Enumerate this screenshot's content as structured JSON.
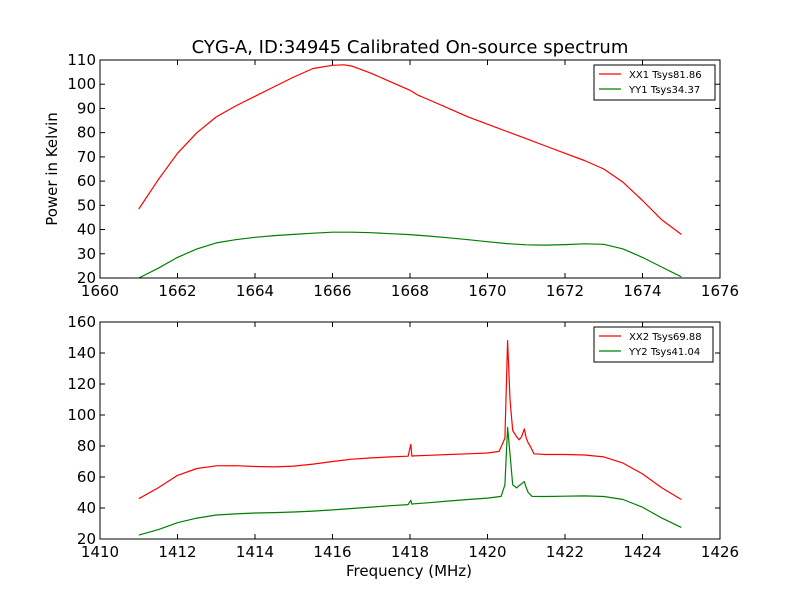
{
  "figure": {
    "title": "CYG-A, ID:34945 Calibrated On-source spectrum",
    "ylabel": "Power in Kelvin",
    "xlabel": "Frequency (MHz)"
  },
  "chart_data": [
    {
      "type": "line",
      "xlim": [
        1660,
        1676
      ],
      "ylim": [
        20,
        110
      ],
      "xticks": [
        "1660",
        "1662",
        "1664",
        "1666",
        "1668",
        "1670",
        "1672",
        "1674",
        "1676"
      ],
      "yticks": [
        "20",
        "30",
        "40",
        "50",
        "60",
        "70",
        "80",
        "90",
        "100",
        "110"
      ],
      "legend_position": "top-right",
      "series": [
        {
          "name": "XX1 Tsys81.86",
          "color": "#ff0000",
          "x": [
            1661.0,
            1661.5,
            1662.0,
            1662.5,
            1663.0,
            1663.5,
            1664.0,
            1664.5,
            1665.0,
            1665.5,
            1666.0,
            1666.3,
            1666.5,
            1667.0,
            1667.5,
            1668.0,
            1668.2,
            1668.5,
            1669.0,
            1669.5,
            1670.0,
            1670.5,
            1671.0,
            1671.5,
            1672.0,
            1672.5,
            1673.0,
            1673.5,
            1674.0,
            1674.5,
            1675.0
          ],
          "y": [
            48.5,
            60.5,
            71.5,
            80.0,
            86.5,
            91.0,
            95.0,
            99.0,
            103.0,
            106.5,
            107.8,
            108.0,
            107.5,
            104.5,
            101.0,
            97.5,
            95.5,
            93.5,
            90.0,
            86.5,
            83.5,
            80.5,
            77.5,
            74.5,
            71.5,
            68.5,
            65.0,
            59.5,
            52.0,
            44.0,
            38.0
          ]
        },
        {
          "name": "YY1 Tsys34.37",
          "color": "#008000",
          "x": [
            1661.0,
            1661.5,
            1662.0,
            1662.5,
            1663.0,
            1663.5,
            1664.0,
            1664.5,
            1665.0,
            1665.5,
            1666.0,
            1666.5,
            1667.0,
            1667.5,
            1668.0,
            1668.5,
            1669.0,
            1669.5,
            1670.0,
            1670.5,
            1671.0,
            1671.5,
            1672.0,
            1672.5,
            1673.0,
            1673.5,
            1674.0,
            1674.5,
            1675.0
          ],
          "y": [
            20.0,
            24.0,
            28.5,
            32.0,
            34.5,
            35.8,
            36.8,
            37.5,
            38.0,
            38.5,
            38.9,
            38.9,
            38.7,
            38.3,
            37.9,
            37.3,
            36.6,
            35.8,
            35.0,
            34.2,
            33.7,
            33.6,
            33.8,
            34.1,
            33.9,
            32.0,
            28.5,
            24.5,
            20.5
          ]
        }
      ]
    },
    {
      "type": "line",
      "xlim": [
        1410,
        1426
      ],
      "ylim": [
        20,
        160
      ],
      "xticks": [
        "1410",
        "1412",
        "1414",
        "1416",
        "1418",
        "1420",
        "1422",
        "1424",
        "1426"
      ],
      "yticks": [
        "20",
        "40",
        "60",
        "80",
        "100",
        "120",
        "140",
        "160"
      ],
      "legend_position": "top-right",
      "series": [
        {
          "name": "XX2 Tsys69.88",
          "color": "#ff0000",
          "x": [
            1411.0,
            1411.5,
            1412.0,
            1412.5,
            1413.0,
            1413.5,
            1414.0,
            1414.5,
            1415.0,
            1415.5,
            1416.0,
            1416.5,
            1417.0,
            1417.5,
            1417.95,
            1418.02,
            1418.05,
            1418.1,
            1418.5,
            1419.0,
            1419.5,
            1420.0,
            1420.3,
            1420.45,
            1420.52,
            1420.58,
            1420.65,
            1420.75,
            1420.82,
            1420.88,
            1420.95,
            1421.0,
            1421.05,
            1421.1,
            1421.2,
            1421.5,
            1422.0,
            1422.5,
            1423.0,
            1423.5,
            1424.0,
            1424.5,
            1425.0
          ],
          "y": [
            46.0,
            53.0,
            61.0,
            65.5,
            67.2,
            67.3,
            66.8,
            66.5,
            67.0,
            68.3,
            70.0,
            71.5,
            72.3,
            73.0,
            73.4,
            81.0,
            73.5,
            73.6,
            74.0,
            74.5,
            75.0,
            75.5,
            76.5,
            85.0,
            148.0,
            110.0,
            90.0,
            86.0,
            84.0,
            86.0,
            91.0,
            85.0,
            82.0,
            80.0,
            75.0,
            74.5,
            74.5,
            74.2,
            73.0,
            69.0,
            62.0,
            53.0,
            45.5
          ]
        },
        {
          "name": "YY2 Tsys41.04",
          "color": "#008000",
          "x": [
            1411.0,
            1411.5,
            1412.0,
            1412.5,
            1413.0,
            1413.5,
            1414.0,
            1414.5,
            1415.0,
            1415.5,
            1416.0,
            1416.5,
            1417.0,
            1417.5,
            1417.95,
            1418.02,
            1418.05,
            1418.1,
            1418.5,
            1419.0,
            1419.5,
            1420.0,
            1420.35,
            1420.45,
            1420.52,
            1420.58,
            1420.65,
            1420.75,
            1420.82,
            1420.9,
            1420.95,
            1421.0,
            1421.05,
            1421.15,
            1421.5,
            1422.0,
            1422.5,
            1423.0,
            1423.5,
            1424.0,
            1424.5,
            1425.0
          ],
          "y": [
            22.5,
            26.0,
            30.5,
            33.5,
            35.5,
            36.2,
            36.8,
            37.0,
            37.4,
            38.0,
            38.8,
            39.7,
            40.6,
            41.5,
            42.2,
            45.0,
            42.5,
            42.7,
            43.4,
            44.5,
            45.5,
            46.4,
            47.5,
            55.0,
            92.0,
            75.0,
            55.0,
            53.0,
            54.5,
            56.0,
            57.0,
            53.0,
            50.0,
            47.5,
            47.4,
            47.6,
            47.8,
            47.4,
            45.5,
            40.5,
            33.5,
            27.5
          ]
        }
      ]
    }
  ]
}
